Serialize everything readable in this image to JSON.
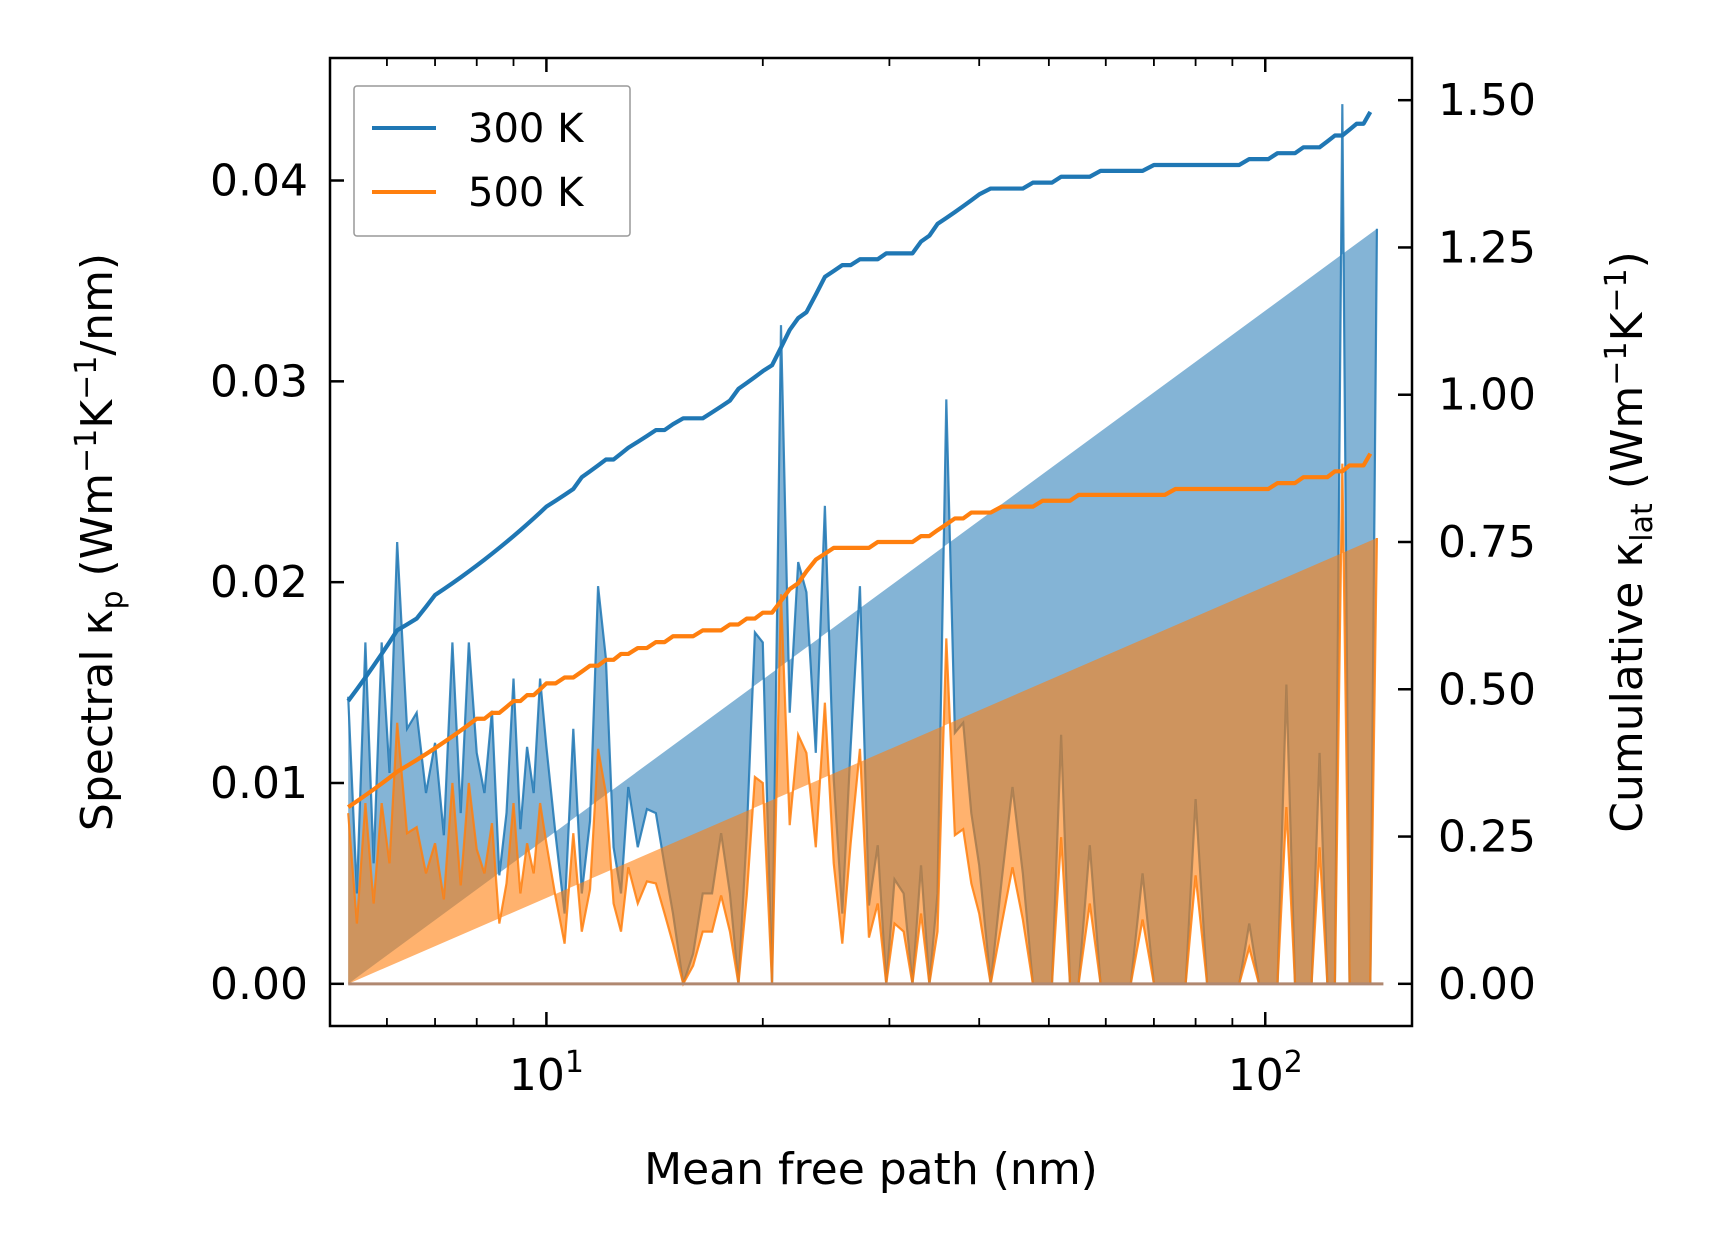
{
  "chart_data": {
    "type": "area",
    "xlabel": "Mean free path (nm)",
    "ylabel_left": {
      "pre": "Spectral κ",
      "sub": "p",
      "unit_a": " (Wm",
      "sup1": "−1",
      "unit_b": "K",
      "sup2": "−1",
      "unit_c": "/nm)"
    },
    "ylabel_right": {
      "pre": "Cumulative κ",
      "sub": "lat",
      "unit_a": " (Wm",
      "sup1": "−1",
      "unit_b": "K",
      "sup2": "−1",
      "unit_c": ")"
    },
    "x_scale": "log",
    "xlim": [
      5.0,
      160
    ],
    "x_ticks": [
      {
        "value": 10,
        "base": "10",
        "exp": "1"
      },
      {
        "value": 100,
        "base": "10",
        "exp": "2"
      }
    ],
    "ylim_left": [
      -0.0021,
      0.0461
    ],
    "y_ticks_left": [
      "0.00",
      "0.01",
      "0.02",
      "0.03",
      "0.04"
    ],
    "ylim_right": [
      -0.0716,
      1.5716
    ],
    "y_ticks_right": [
      "0.00",
      "0.25",
      "0.50",
      "0.75",
      "1.00",
      "1.25",
      "1.50"
    ],
    "legend": {
      "placement": "top-left",
      "entries": [
        "300 K",
        "500 K"
      ]
    },
    "colors": {
      "series_300": "#1f77b4",
      "series_500": "#ff7f0e",
      "fill_300": "#1f77b4",
      "fill_500": "#ff7f0e"
    },
    "spectral_x": [
      5.3,
      5.45,
      5.6,
      5.75,
      5.9,
      6.05,
      6.2,
      6.4,
      6.6,
      6.8,
      7.0,
      7.2,
      7.4,
      7.6,
      7.8,
      8.0,
      8.2,
      8.4,
      8.6,
      8.8,
      9.0,
      9.2,
      9.4,
      9.6,
      9.8,
      10.0,
      10.3,
      10.6,
      10.9,
      11.2,
      11.5,
      11.8,
      12.1,
      12.4,
      12.7,
      13.0,
      13.4,
      13.8,
      14.2,
      14.6,
      15.0,
      15.5,
      16.0,
      16.5,
      17.0,
      17.5,
      18.0,
      18.5,
      19.0,
      19.5,
      20.0,
      20.6,
      21.2,
      21.8,
      22.4,
      23.0,
      23.7,
      24.4,
      25.1,
      25.8,
      26.5,
      27.3,
      28.1,
      28.9,
      29.7,
      30.5,
      31.4,
      32.3,
      33.2,
      34.1,
      35.0,
      36.0,
      37.0,
      38.0,
      39.0,
      40.0,
      41.5,
      43.0,
      44.5,
      46.0,
      47.5,
      49.0,
      50.5,
      52.0,
      53.5,
      55.0,
      57.0,
      59.0,
      61.0,
      63.0,
      65.0,
      67.5,
      70.0,
      72.5,
      75.0,
      77.5,
      80.0,
      83.0,
      86.0,
      89.0,
      92.0,
      95.0,
      98.0,
      101.0,
      104.0,
      107.0,
      110.0,
      113.0,
      116.0,
      119.0,
      122.0,
      125.0,
      128.0,
      131.0,
      134.0,
      137.0,
      140.0,
      143.0,
      146.0
    ],
    "series": [
      {
        "name": "300 K",
        "spectral": [
          0.0143,
          0.0045,
          0.017,
          0.006,
          0.017,
          0.0105,
          0.022,
          0.0127,
          0.0135,
          0.0095,
          0.012,
          0.0074,
          0.017,
          0.0085,
          0.017,
          0.0115,
          0.0095,
          0.0136,
          0.0054,
          0.0085,
          0.0152,
          0.0077,
          0.0118,
          0.0095,
          0.0152,
          0.0118,
          0.0074,
          0.0035,
          0.0127,
          0.0045,
          0.0081,
          0.0198,
          0.0162,
          0.0068,
          0.0045,
          0.0098,
          0.0068,
          0.0087,
          0.0085,
          0.0059,
          0.0035,
          0.0,
          0.0015,
          0.0045,
          0.0045,
          0.0075,
          0.0045,
          0.0,
          0.0075,
          0.0175,
          0.017,
          0.0,
          0.0328,
          0.0135,
          0.021,
          0.0195,
          0.0115,
          0.0238,
          0.0102,
          0.0035,
          0.0118,
          0.0198,
          0.0039,
          0.0069,
          0.0,
          0.0052,
          0.0045,
          0.0,
          0.0059,
          0.0,
          0.0045,
          0.0291,
          0.0125,
          0.013,
          0.0085,
          0.0059,
          0.0,
          0.0052,
          0.0098,
          0.0055,
          0.0,
          0.0,
          0.0,
          0.0124,
          0.0,
          0.0,
          0.0069,
          0.0,
          0.0,
          0.0,
          0.0,
          0.0055,
          0.0,
          0.0,
          0.0,
          0.0,
          0.0092,
          0.0,
          0.0,
          0.0,
          0.0,
          0.003,
          0.0,
          0.0,
          0.0,
          0.0149,
          0.0,
          0.0,
          0.0,
          0.0115,
          0.0,
          0.0,
          0.0438,
          0.0,
          0.0,
          0.0,
          0.0,
          0.0376
        ],
        "cumulative": [
          0.48,
          0.5,
          0.52,
          0.54,
          0.56,
          0.58,
          0.6,
          0.61,
          0.62,
          0.64,
          0.66,
          0.67,
          0.68,
          0.69,
          0.7,
          0.71,
          0.72,
          0.73,
          0.74,
          0.75,
          0.76,
          0.77,
          0.78,
          0.79,
          0.8,
          0.81,
          0.82,
          0.83,
          0.84,
          0.86,
          0.87,
          0.88,
          0.89,
          0.89,
          0.9,
          0.91,
          0.92,
          0.93,
          0.94,
          0.94,
          0.95,
          0.96,
          0.96,
          0.96,
          0.97,
          0.98,
          0.99,
          1.01,
          1.02,
          1.03,
          1.04,
          1.05,
          1.08,
          1.11,
          1.13,
          1.14,
          1.17,
          1.2,
          1.21,
          1.22,
          1.22,
          1.23,
          1.23,
          1.23,
          1.24,
          1.24,
          1.24,
          1.24,
          1.26,
          1.27,
          1.29,
          1.3,
          1.31,
          1.32,
          1.33,
          1.34,
          1.35,
          1.35,
          1.35,
          1.35,
          1.36,
          1.36,
          1.36,
          1.37,
          1.37,
          1.37,
          1.37,
          1.38,
          1.38,
          1.38,
          1.38,
          1.38,
          1.39,
          1.39,
          1.39,
          1.39,
          1.39,
          1.39,
          1.39,
          1.39,
          1.39,
          1.4,
          1.4,
          1.4,
          1.41,
          1.41,
          1.41,
          1.42,
          1.42,
          1.42,
          1.43,
          1.44,
          1.44,
          1.45,
          1.46,
          1.46,
          1.48
        ]
      },
      {
        "name": "500 K",
        "spectral": [
          0.0085,
          0.003,
          0.009,
          0.004,
          0.009,
          0.006,
          0.013,
          0.0075,
          0.0078,
          0.0055,
          0.007,
          0.0042,
          0.01,
          0.0049,
          0.01,
          0.0067,
          0.0055,
          0.008,
          0.003,
          0.005,
          0.009,
          0.0045,
          0.007,
          0.0055,
          0.009,
          0.007,
          0.0043,
          0.002,
          0.0075,
          0.0026,
          0.0047,
          0.0117,
          0.0095,
          0.004,
          0.0026,
          0.0058,
          0.004,
          0.0051,
          0.005,
          0.0035,
          0.002,
          0.0,
          0.0009,
          0.0026,
          0.0026,
          0.0044,
          0.0026,
          0.0,
          0.0044,
          0.0103,
          0.01,
          0.0,
          0.0194,
          0.0079,
          0.0124,
          0.0115,
          0.0068,
          0.014,
          0.006,
          0.002,
          0.007,
          0.0117,
          0.0023,
          0.004,
          0.0,
          0.003,
          0.0026,
          0.0,
          0.0035,
          0.0,
          0.0026,
          0.0172,
          0.0074,
          0.0077,
          0.005,
          0.0035,
          0.0,
          0.003,
          0.0058,
          0.0032,
          0.0,
          0.0,
          0.0,
          0.0073,
          0.0,
          0.0,
          0.004,
          0.0,
          0.0,
          0.0,
          0.0,
          0.0032,
          0.0,
          0.0,
          0.0,
          0.0,
          0.0054,
          0.0,
          0.0,
          0.0,
          0.0,
          0.0018,
          0.0,
          0.0,
          0.0,
          0.0088,
          0.0,
          0.0,
          0.0,
          0.0068,
          0.0,
          0.0,
          0.0259,
          0.0,
          0.0,
          0.0,
          0.0,
          0.0222
        ],
        "cumulative": [
          0.3,
          0.31,
          0.32,
          0.33,
          0.34,
          0.35,
          0.36,
          0.37,
          0.38,
          0.39,
          0.4,
          0.41,
          0.42,
          0.43,
          0.44,
          0.45,
          0.45,
          0.46,
          0.46,
          0.47,
          0.48,
          0.48,
          0.49,
          0.49,
          0.5,
          0.51,
          0.51,
          0.52,
          0.52,
          0.53,
          0.54,
          0.54,
          0.55,
          0.55,
          0.56,
          0.56,
          0.57,
          0.57,
          0.58,
          0.58,
          0.59,
          0.59,
          0.59,
          0.6,
          0.6,
          0.6,
          0.61,
          0.61,
          0.62,
          0.62,
          0.63,
          0.63,
          0.65,
          0.67,
          0.68,
          0.7,
          0.72,
          0.73,
          0.74,
          0.74,
          0.74,
          0.74,
          0.74,
          0.75,
          0.75,
          0.75,
          0.75,
          0.75,
          0.76,
          0.76,
          0.77,
          0.78,
          0.79,
          0.79,
          0.8,
          0.8,
          0.8,
          0.81,
          0.81,
          0.81,
          0.81,
          0.82,
          0.82,
          0.82,
          0.82,
          0.83,
          0.83,
          0.83,
          0.83,
          0.83,
          0.83,
          0.83,
          0.83,
          0.83,
          0.84,
          0.84,
          0.84,
          0.84,
          0.84,
          0.84,
          0.84,
          0.84,
          0.84,
          0.84,
          0.85,
          0.85,
          0.85,
          0.86,
          0.86,
          0.86,
          0.86,
          0.87,
          0.87,
          0.88,
          0.88,
          0.88,
          0.9
        ]
      }
    ]
  }
}
